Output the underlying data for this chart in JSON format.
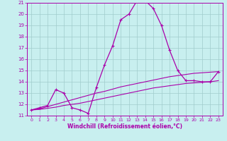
{
  "xlabel": "Windchill (Refroidissement éolien,°C)",
  "bg_color": "#c8efef",
  "grid_color": "#a0cccc",
  "line_color": "#aa00aa",
  "xlim": [
    -0.5,
    23.5
  ],
  "ylim": [
    11,
    21
  ],
  "xticks": [
    0,
    1,
    2,
    3,
    4,
    5,
    6,
    7,
    8,
    9,
    10,
    11,
    12,
    13,
    14,
    15,
    16,
    17,
    18,
    19,
    20,
    21,
    22,
    23
  ],
  "yticks": [
    11,
    12,
    13,
    14,
    15,
    16,
    17,
    18,
    19,
    20,
    21
  ],
  "line1_x": [
    0,
    1,
    2,
    3,
    4,
    5,
    6,
    7,
    8,
    9,
    10,
    11,
    12,
    13,
    14,
    15,
    16,
    17,
    18,
    19,
    20,
    21,
    22,
    23
  ],
  "line1_y": [
    11.5,
    11.7,
    11.9,
    13.3,
    13.0,
    11.7,
    11.5,
    11.2,
    13.5,
    15.5,
    17.2,
    19.5,
    20.0,
    21.2,
    21.2,
    20.5,
    19.0,
    16.8,
    15.0,
    14.1,
    14.1,
    14.0,
    14.0,
    14.9
  ],
  "line2_x": [
    0,
    1,
    2,
    3,
    4,
    5,
    6,
    7,
    8,
    9,
    10,
    11,
    12,
    13,
    14,
    15,
    16,
    17,
    18,
    19,
    20,
    21,
    22,
    23
  ],
  "line2_y": [
    11.5,
    11.6,
    11.8,
    12.0,
    12.2,
    12.4,
    12.6,
    12.8,
    13.0,
    13.15,
    13.35,
    13.55,
    13.7,
    13.85,
    14.0,
    14.15,
    14.3,
    14.45,
    14.55,
    14.65,
    14.75,
    14.8,
    14.85,
    14.9
  ],
  "line3_x": [
    0,
    1,
    2,
    3,
    4,
    5,
    6,
    7,
    8,
    9,
    10,
    11,
    12,
    13,
    14,
    15,
    16,
    17,
    18,
    19,
    20,
    21,
    22,
    23
  ],
  "line3_y": [
    11.5,
    11.55,
    11.65,
    11.75,
    11.9,
    12.0,
    12.1,
    12.25,
    12.4,
    12.55,
    12.7,
    12.85,
    13.0,
    13.15,
    13.3,
    13.45,
    13.55,
    13.65,
    13.75,
    13.85,
    13.9,
    13.95,
    14.0,
    14.1
  ]
}
